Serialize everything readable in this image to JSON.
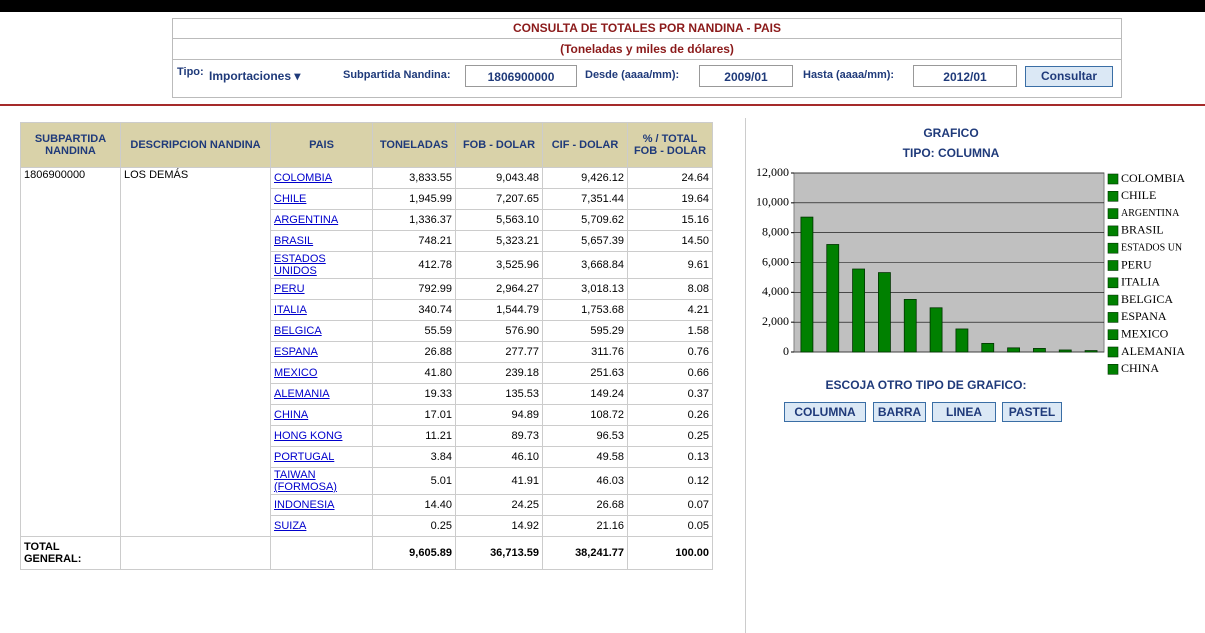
{
  "header": {
    "title": "CONSULTA DE TOTALES POR NANDINA - PAIS",
    "subtitle": "(Toneladas y miles de dólares)"
  },
  "form": {
    "tipo_label": "Tipo:",
    "tipo_value": "Importaciones",
    "subpartida_label": "Subpartida Nandina:",
    "subpartida_value": "1806900000",
    "desde_label": "Desde (aaaa/mm):",
    "desde_value": "2009/01",
    "hasta_label": "Hasta (aaaa/mm):",
    "hasta_value": "2012/01",
    "button": "Consultar"
  },
  "table": {
    "columns": [
      "SUBPARTIDA NANDINA",
      "DESCRIPCION NANDINA",
      "PAIS",
      "TONELADAS",
      "FOB - DOLAR",
      "CIF - DOLAR",
      "% / TOTAL FOB - DOLAR"
    ],
    "group": {
      "code": "1806900000",
      "description": "LOS DEMÁS"
    },
    "rows": [
      [
        "COLOMBIA",
        "3,833.55",
        "9,043.48",
        "9,426.12",
        "24.64"
      ],
      [
        "CHILE",
        "1,945.99",
        "7,207.65",
        "7,351.44",
        "19.64"
      ],
      [
        "ARGENTINA",
        "1,336.37",
        "5,563.10",
        "5,709.62",
        "15.16"
      ],
      [
        "BRASIL",
        "748.21",
        "5,323.21",
        "5,657.39",
        "14.50"
      ],
      [
        "ESTADOS UNIDOS",
        "412.78",
        "3,525.96",
        "3,668.84",
        "9.61"
      ],
      [
        "PERU",
        "792.99",
        "2,964.27",
        "3,018.13",
        "8.08"
      ],
      [
        "ITALIA",
        "340.74",
        "1,544.79",
        "1,753.68",
        "4.21"
      ],
      [
        "BELGICA",
        "55.59",
        "576.90",
        "595.29",
        "1.58"
      ],
      [
        "ESPANA",
        "26.88",
        "277.77",
        "311.76",
        "0.76"
      ],
      [
        "MEXICO",
        "41.80",
        "239.18",
        "251.63",
        "0.66"
      ],
      [
        "ALEMANIA",
        "19.33",
        "135.53",
        "149.24",
        "0.37"
      ],
      [
        "CHINA",
        "17.01",
        "94.89",
        "108.72",
        "0.26"
      ],
      [
        "HONG KONG",
        "11.21",
        "89.73",
        "96.53",
        "0.25"
      ],
      [
        "PORTUGAL",
        "3.84",
        "46.10",
        "49.58",
        "0.13"
      ],
      [
        "TAIWAN (FORMOSA)",
        "5.01",
        "41.91",
        "46.03",
        "0.12"
      ],
      [
        "INDONESIA",
        "14.40",
        "24.25",
        "26.68",
        "0.07"
      ],
      [
        "SUIZA",
        "0.25",
        "14.92",
        "21.16",
        "0.05"
      ]
    ],
    "total": {
      "label": "TOTAL GENERAL:",
      "values": [
        "9,605.89",
        "36,713.59",
        "38,241.77",
        "100.00"
      ]
    }
  },
  "panel": {
    "title": "GRAFICO",
    "subtitle": "TIPO: COLUMNA",
    "choose_label": "ESCOJA OTRO TIPO DE GRAFICO:",
    "buttons": [
      "COLUMNA",
      "BARRA",
      "LINEA",
      "PASTEL"
    ]
  },
  "chart_data": {
    "type": "bar",
    "categories": [
      "COLOMBIA",
      "CHILE",
      "ARGENTINA",
      "BRASIL",
      "ESTADOS UN",
      "PERU",
      "ITALIA",
      "BELGICA",
      "ESPANA",
      "MEXICO",
      "ALEMANIA",
      "CHINA"
    ],
    "values": [
      9043.48,
      7207.65,
      5563.1,
      5323.21,
      3525.96,
      2964.27,
      1544.79,
      576.9,
      277.77,
      239.18,
      135.53,
      94.89
    ],
    "color": "#008000",
    "ylim": [
      0,
      12000
    ],
    "yticks": [
      0,
      {
        "value": 2000,
        "label": "2,000"
      },
      {
        "value": 4000,
        "label": "4,000"
      },
      {
        "value": 6000,
        "label": "6,000"
      },
      {
        "value": 8000,
        "label": "8,000"
      },
      {
        "value": 10000,
        "label": "10,000"
      },
      {
        "value": 12000,
        "label": "12,000"
      }
    ],
    "grid": true
  }
}
